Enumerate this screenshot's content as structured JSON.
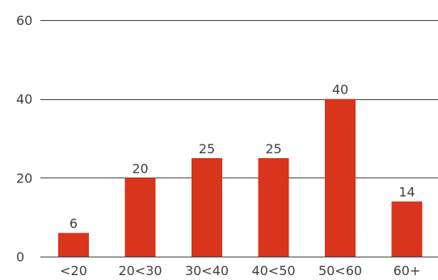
{
  "chart_data": {
    "type": "bar",
    "categories": [
      "<20",
      "20<30",
      "30<40",
      "40<50",
      "50<60",
      "60+"
    ],
    "values": [
      6,
      20,
      25,
      25,
      40,
      14
    ],
    "data_labels": [
      "6",
      "20",
      "25",
      "25",
      "40",
      "14"
    ],
    "y_ticks": [
      0,
      20,
      40,
      60
    ],
    "y_tick_labels": [
      "0",
      "20",
      "40",
      "60"
    ],
    "ylim": [
      0,
      60
    ],
    "title": "",
    "xlabel": "",
    "ylabel": "",
    "grid": true,
    "legend": "none",
    "colors": {
      "bar": "#d9341c",
      "grid": "#404040",
      "text": "#404040"
    }
  }
}
